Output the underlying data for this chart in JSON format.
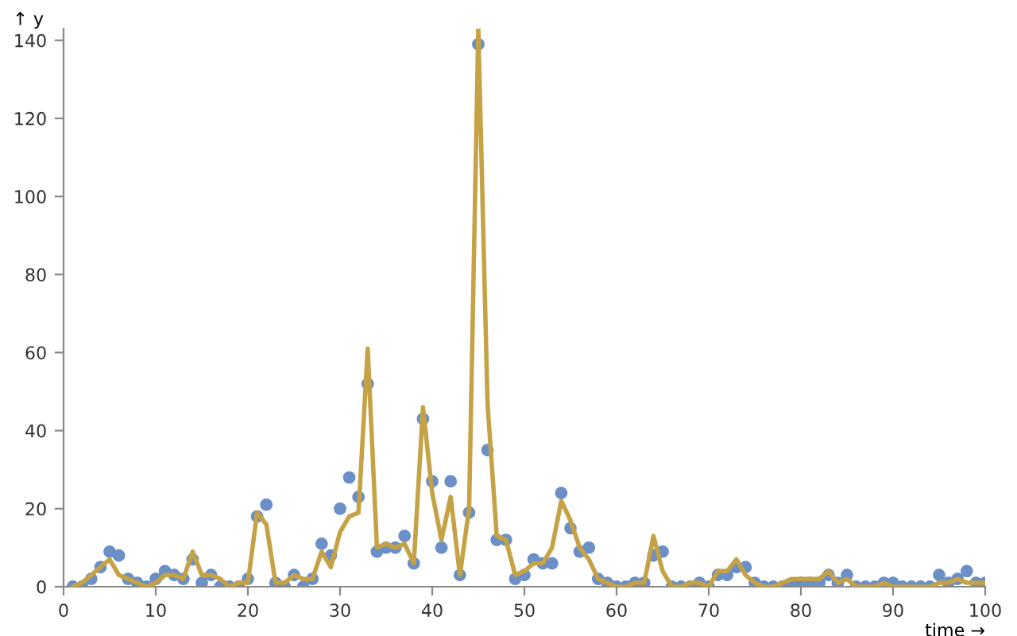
{
  "chart_data": {
    "type": "scatter",
    "xlabel": "time →",
    "ylabel": "↑ y",
    "xlim": [
      0,
      100
    ],
    "ylim": [
      0,
      143
    ],
    "xticks": [
      0,
      10,
      20,
      30,
      40,
      50,
      60,
      70,
      80,
      90,
      100
    ],
    "yticks": [
      0,
      20,
      40,
      60,
      80,
      100,
      120,
      140
    ],
    "grid": false,
    "x": [
      1,
      2,
      3,
      4,
      5,
      6,
      7,
      8,
      9,
      10,
      11,
      12,
      13,
      14,
      15,
      16,
      17,
      18,
      19,
      20,
      21,
      22,
      23,
      24,
      25,
      26,
      27,
      28,
      29,
      30,
      31,
      32,
      33,
      34,
      35,
      36,
      37,
      38,
      39,
      40,
      41,
      42,
      43,
      44,
      45,
      46,
      47,
      48,
      49,
      50,
      51,
      52,
      53,
      54,
      55,
      56,
      57,
      58,
      59,
      60,
      61,
      62,
      63,
      64,
      65,
      66,
      67,
      68,
      69,
      70,
      71,
      72,
      73,
      74,
      75,
      76,
      77,
      78,
      79,
      80,
      81,
      82,
      83,
      84,
      85,
      86,
      87,
      88,
      89,
      90,
      91,
      92,
      93,
      94,
      95,
      96,
      97,
      98,
      99,
      100
    ],
    "series": [
      {
        "marker": "circle",
        "color": "#6b8fc7",
        "values": [
          0,
          0,
          2,
          5,
          9,
          8,
          2,
          1,
          0,
          2,
          4,
          3,
          2,
          7,
          1,
          3,
          0,
          0,
          0,
          2,
          18,
          21,
          1,
          0,
          3,
          0,
          2,
          11,
          8,
          20,
          28,
          23,
          52,
          9,
          10,
          10,
          13,
          6,
          43,
          27,
          10,
          27,
          3,
          19,
          139,
          35,
          12,
          12,
          2,
          3,
          7,
          6,
          6,
          24,
          15,
          9,
          10,
          2,
          1,
          0,
          0,
          1,
          1,
          8,
          9,
          0,
          0,
          0,
          1,
          0,
          3,
          3,
          5,
          5,
          1,
          0,
          0,
          0,
          0,
          1,
          1,
          1,
          3,
          1,
          3,
          0,
          0,
          0,
          1,
          1,
          0,
          0,
          0,
          0,
          3,
          1,
          2,
          4,
          1,
          1
        ]
      },
      {
        "type": "line",
        "color": "#c4a245",
        "marker": "none",
        "values": [
          0,
          1,
          3,
          5,
          7,
          3,
          2,
          1,
          0,
          1,
          3,
          3,
          2,
          9,
          3,
          3,
          2,
          0,
          1,
          1,
          19,
          16,
          1,
          1,
          3,
          2,
          2,
          9,
          5,
          14,
          18,
          19,
          61,
          10,
          11,
          10,
          11,
          6,
          46,
          24,
          12,
          23,
          3,
          20,
          143,
          47,
          13,
          12,
          3,
          4,
          6,
          6,
          10,
          22,
          17,
          10,
          7,
          2,
          1,
          0,
          0,
          1,
          1,
          13,
          4,
          0,
          0,
          1,
          1,
          0,
          4,
          4,
          7,
          3,
          1,
          0,
          0,
          1,
          2,
          2,
          2,
          2,
          4,
          1,
          2,
          0,
          0,
          0,
          1,
          0,
          0,
          0,
          0,
          0,
          1,
          1,
          2,
          1,
          1,
          1
        ]
      }
    ]
  }
}
